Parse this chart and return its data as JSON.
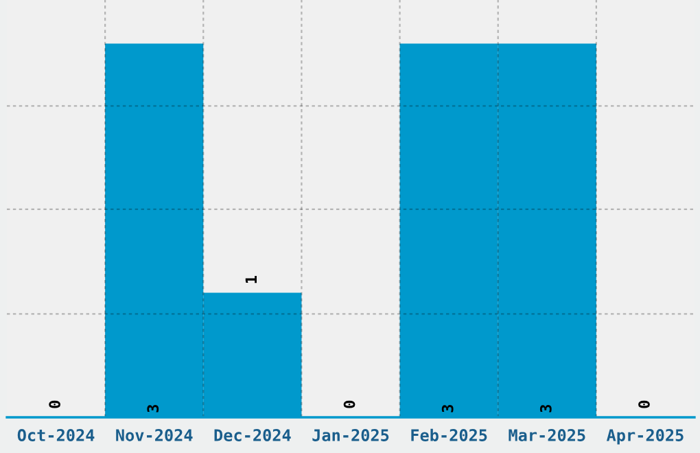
{
  "chart_data": {
    "type": "bar",
    "categories": [
      "Oct-2024",
      "Nov-2024",
      "Dec-2024",
      "Jan-2025",
      "Feb-2025",
      "Mar-2025",
      "Apr-2025"
    ],
    "values": [
      0,
      3,
      1,
      0,
      3,
      3,
      0
    ],
    "color": "#0099cc",
    "ylim": [
      0,
      3.35
    ],
    "yticks": [
      {
        "value": 0.83,
        "label": null
      },
      {
        "value": 1.67,
        "label": null
      },
      {
        "value": 2.5,
        "label": null
      }
    ],
    "tick_labels": "x",
    "grid": true,
    "data_labels": true
  }
}
